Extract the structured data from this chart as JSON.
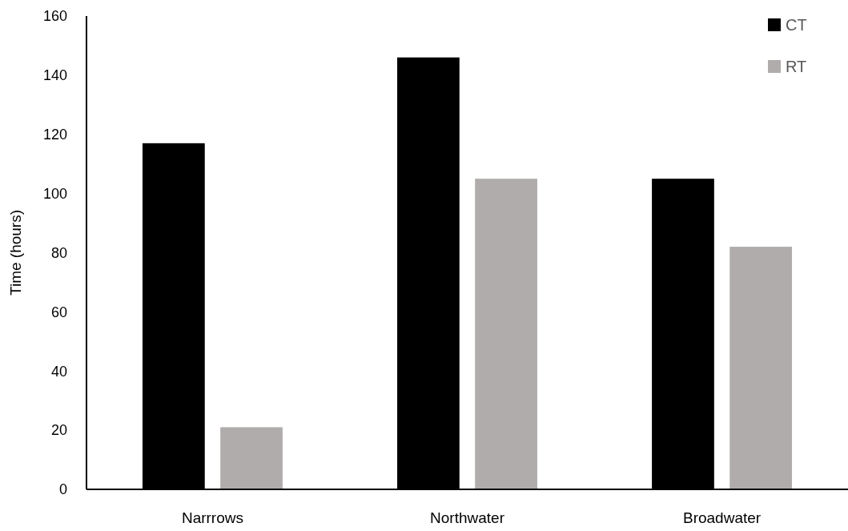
{
  "chart_data": {
    "type": "bar",
    "ylabel": "Time (hours)",
    "categories": [
      "Narrrows",
      "Northwater",
      "Broadwater"
    ],
    "series": [
      {
        "name": "CT",
        "color": "#000000",
        "values": [
          117,
          146,
          105
        ]
      },
      {
        "name": "RT",
        "color": "#afacab",
        "values": [
          21,
          105,
          82
        ]
      }
    ],
    "ylim": [
      0,
      160
    ],
    "yticks": [
      0,
      20,
      40,
      60,
      80,
      100,
      120,
      140,
      160
    ],
    "grid": false,
    "legend": "top right"
  }
}
